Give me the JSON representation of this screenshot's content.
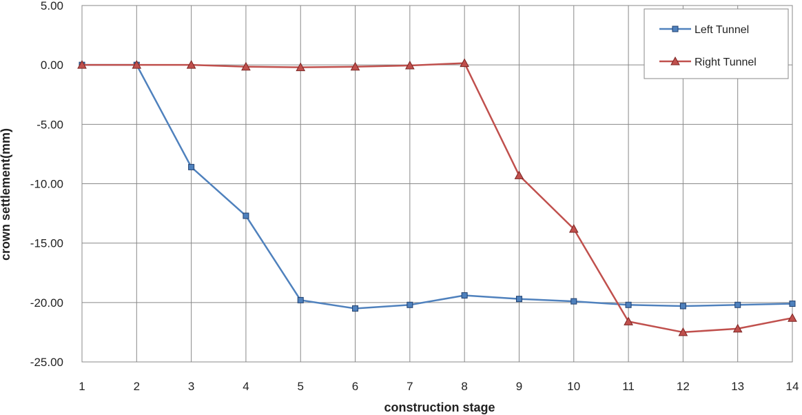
{
  "chart_data": {
    "type": "line",
    "title": "",
    "xlabel": "construction stage",
    "ylabel": "crown settlement(mm)",
    "x": [
      1,
      2,
      3,
      4,
      5,
      6,
      7,
      8,
      9,
      10,
      11,
      12,
      13,
      14
    ],
    "ylim": [
      -25,
      5
    ],
    "yticks": [
      "5.00",
      "0.00",
      "-5.00",
      "-10.00",
      "-15.00",
      "-20.00",
      "-25.00"
    ],
    "xticks": [
      "1",
      "2",
      "3",
      "4",
      "5",
      "6",
      "7",
      "8",
      "9",
      "10",
      "11",
      "12",
      "13",
      "14"
    ],
    "grid": true,
    "legend_position": "top-right",
    "series": [
      {
        "name": "Left Tunnel",
        "color": "#4f81bd",
        "marker": "square",
        "values": [
          0.0,
          0.0,
          -8.6,
          -12.7,
          -19.8,
          -20.5,
          -20.2,
          -19.4,
          -19.7,
          -19.9,
          -20.2,
          -20.3,
          -20.2,
          -20.1
        ]
      },
      {
        "name": "Right Tunnel",
        "color": "#c0504d",
        "marker": "triangle",
        "values": [
          0.0,
          0.0,
          0.0,
          -0.15,
          -0.2,
          -0.15,
          -0.05,
          0.15,
          -9.3,
          -13.8,
          -21.6,
          -22.5,
          -22.2,
          -21.3
        ]
      }
    ]
  }
}
